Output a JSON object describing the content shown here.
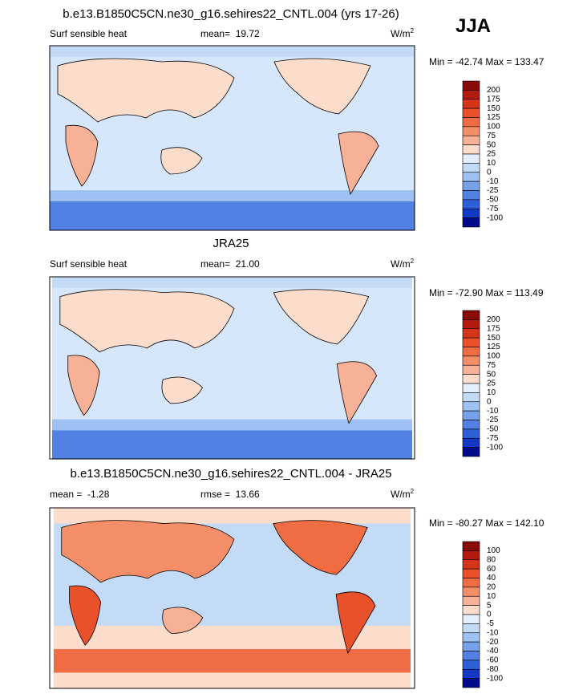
{
  "panels": [
    {
      "title": "b.e13.B1850C5CN.ne30_g16.sehires22_CNTL.004 (yrs 17-26)",
      "season": "JJA",
      "variable": "Surf sensible heat",
      "mean": "mean=  19.72",
      "units": "W/m",
      "units_exponent": "2",
      "range": "Min = -42.74 Max = 133.47",
      "colorbar": {
        "levels": [
          200,
          175,
          150,
          125,
          100,
          75,
          50,
          25,
          10,
          0,
          -10,
          -25,
          -50,
          -75,
          -100
        ],
        "colors": [
          "#8b0a0a",
          "#b31b0e",
          "#d53518",
          "#e8512a",
          "#f06c42",
          "#f48e68",
          "#f7b197",
          "#fcdcca",
          "#e3efff",
          "#c4dbf8",
          "#9cc1f2",
          "#77a2ea",
          "#5181e2",
          "#2d5fd8",
          "#1139c6",
          "#000a8a"
        ]
      }
    },
    {
      "title": "JRA25",
      "variable": "Surf sensible heat",
      "mean": "mean=  21.00",
      "units": "W/m",
      "units_exponent": "2",
      "range": "Min = -72.90 Max = 113.49",
      "colorbar": {
        "levels": [
          200,
          175,
          150,
          125,
          100,
          75,
          50,
          25,
          10,
          0,
          -10,
          -25,
          -50,
          -75,
          -100
        ],
        "colors": [
          "#8b0a0a",
          "#b31b0e",
          "#d53518",
          "#e8512a",
          "#f06c42",
          "#f48e68",
          "#f7b197",
          "#fcdcca",
          "#e3efff",
          "#c4dbf8",
          "#9cc1f2",
          "#77a2ea",
          "#5181e2",
          "#2d5fd8",
          "#1139c6",
          "#000a8a"
        ]
      }
    },
    {
      "title": "b.e13.B1850C5CN.ne30_g16.sehires22_CNTL.004 - JRA25",
      "mean": "mean =  -1.28",
      "rmse": "rmse =  13.66",
      "units": "W/m",
      "units_exponent": "2",
      "range": "Min = -80.27 Max = 142.10",
      "colorbar": {
        "levels": [
          100,
          80,
          60,
          40,
          20,
          10,
          5,
          0,
          -5,
          -10,
          -20,
          -40,
          -60,
          -80,
          -100
        ],
        "colors": [
          "#8b0a0a",
          "#b31b0e",
          "#d53518",
          "#e8512a",
          "#f06c42",
          "#f48e68",
          "#f7b197",
          "#fcdcca",
          "#e3efff",
          "#c4dbf8",
          "#9cc1f2",
          "#77a2ea",
          "#5181e2",
          "#2d5fd8",
          "#1139c6",
          "#000a8a"
        ]
      }
    }
  ]
}
